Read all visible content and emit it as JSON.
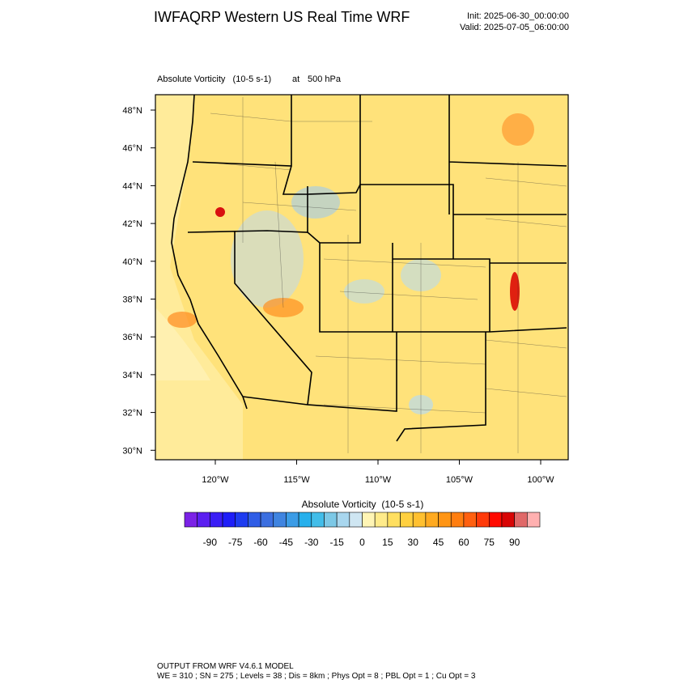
{
  "header": {
    "title": "IWFAQRP Western US Real Time WRF",
    "init": "Init: 2025-06-30_00:00:00",
    "valid": "Valid: 2025-07-05_06:00:00"
  },
  "plot": {
    "field": "Absolute Vorticity   (10-5 s-1)",
    "at": "at",
    "level": "500 hPa"
  },
  "map": {
    "lat_labels": [
      "48°N",
      "46°N",
      "44°N",
      "42°N",
      "40°N",
      "38°N",
      "36°N",
      "34°N",
      "32°N",
      "30°N"
    ],
    "lon_labels": [
      "120°W",
      "115°W",
      "110°W",
      "105°W",
      "100°W"
    ]
  },
  "colorbar": {
    "title": "Absolute Vorticity  (10-5 s-1)",
    "lim": [
      -105,
      105
    ],
    "ticks": [
      -90,
      -75,
      -60,
      -45,
      -30,
      -15,
      0,
      15,
      30,
      45,
      60,
      75,
      90
    ],
    "colors": [
      "#7b22e6",
      "#5b1ff0",
      "#3a1ef5",
      "#1e1ef8",
      "#1e3cf0",
      "#2f5de6",
      "#3c6fe0",
      "#3f84e0",
      "#3b9ce6",
      "#27b0ec",
      "#42bde9",
      "#7cc8e6",
      "#a8d6ee",
      "#cfe6f2",
      "#fff5b5",
      "#ffeb8a",
      "#ffdf60",
      "#ffd040",
      "#ffc030",
      "#ffaa20",
      "#ff9515",
      "#ff7e10",
      "#ff6010",
      "#ff3a0a",
      "#ff0a00",
      "#d80505",
      "#e06868",
      "#ffb0b0"
    ]
  },
  "footer": {
    "line1": "OUTPUT FROM WRF V4.6.1 MODEL",
    "line2": "WE = 310 ; SN = 275 ; Levels = 38 ; Dis = 8km ; Phys Opt = 8 ; PBL Opt = 1 ; Cu Opt = 3"
  }
}
